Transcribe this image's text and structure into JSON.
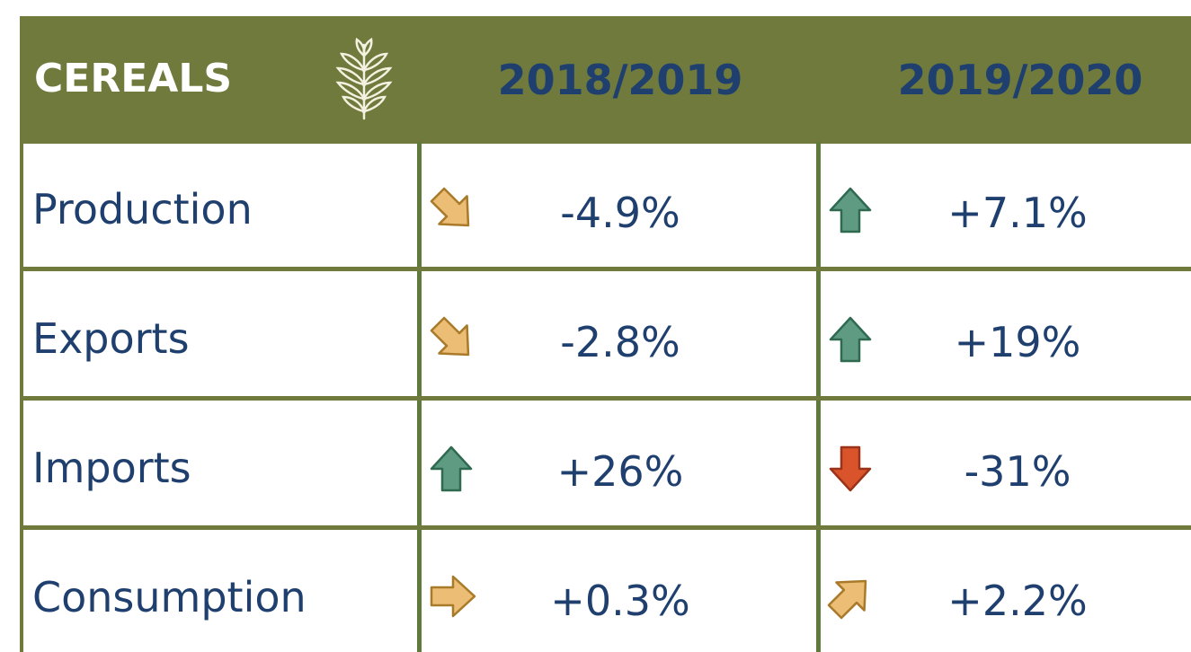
{
  "header": {
    "title": "CEREALS",
    "columns": [
      "2018/2019",
      "2019/2020"
    ]
  },
  "table": {
    "rows": [
      [
        "Production",
        "-4.9%",
        "+7.1%"
      ],
      [
        "Exports",
        "-2.8%",
        "+19%"
      ],
      [
        "Imports",
        "+26%",
        "-31%"
      ],
      [
        "Consumption",
        "+0.3%",
        "+2.2%"
      ]
    ]
  }
}
